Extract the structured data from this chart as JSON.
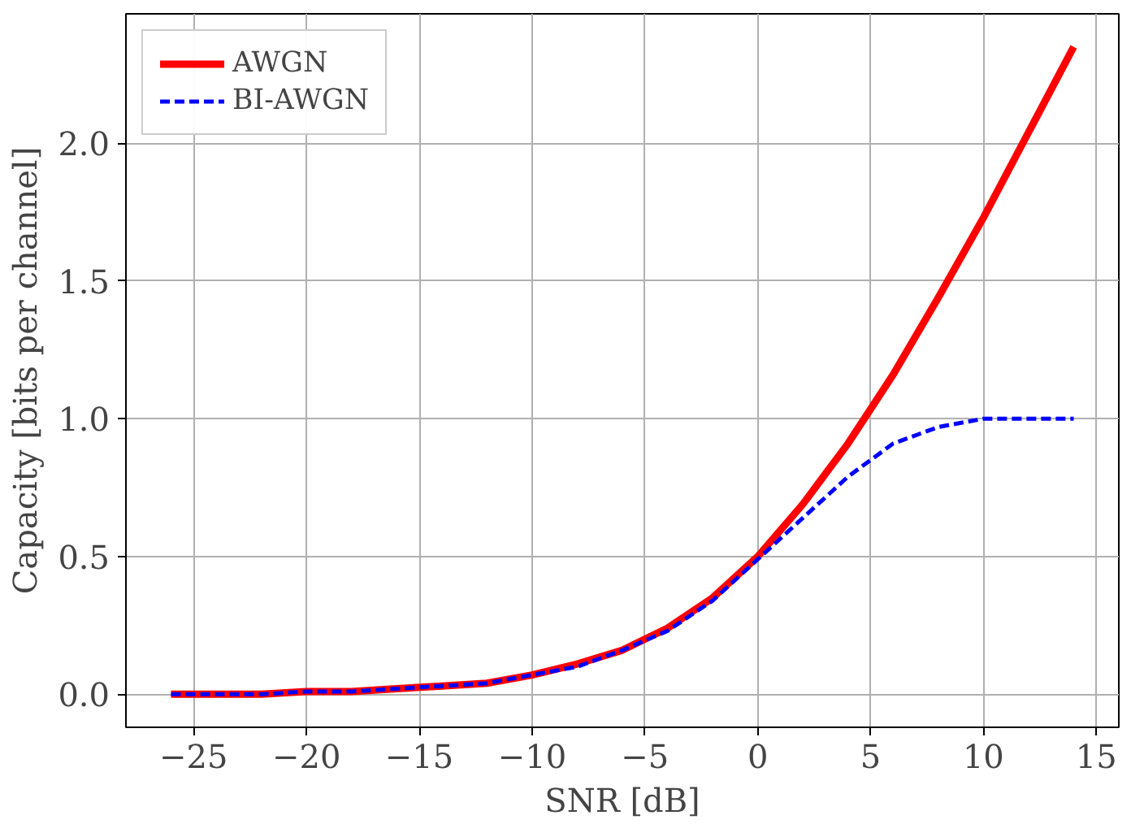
{
  "chart_data": {
    "type": "line",
    "xlabel": "SNR [dB]",
    "ylabel": "Capacity [bits per channel]",
    "x": [
      -26,
      -24,
      -22,
      -20,
      -18,
      -16,
      -14,
      -12,
      -10,
      -8,
      -6,
      -4,
      -2,
      0,
      2,
      4,
      6,
      8,
      10,
      12,
      14
    ],
    "series": [
      {
        "name": "AWGN",
        "color": "#ff0000",
        "line_style": "solid",
        "values": [
          0.0,
          0.0,
          0.0,
          0.01,
          0.01,
          0.02,
          0.03,
          0.04,
          0.07,
          0.11,
          0.16,
          0.24,
          0.35,
          0.5,
          0.69,
          0.91,
          1.16,
          1.44,
          1.73,
          2.04,
          2.35
        ]
      },
      {
        "name": "BI-AWGN",
        "color": "#0000ff",
        "line_style": "dashed",
        "values": [
          0.0,
          0.0,
          0.0,
          0.01,
          0.01,
          0.02,
          0.03,
          0.04,
          0.07,
          0.1,
          0.16,
          0.23,
          0.34,
          0.49,
          0.64,
          0.79,
          0.91,
          0.97,
          1.0,
          1.0,
          1.0
        ]
      }
    ],
    "xlim": [
      -28,
      16
    ],
    "ylim": [
      -0.12,
      2.47
    ],
    "xticks": [
      -25,
      -20,
      -15,
      -10,
      -5,
      0,
      5,
      10,
      15
    ],
    "yticks": [
      {
        "value": 0,
        "label": "0.0"
      },
      {
        "value": 0.5,
        "label": "0.5"
      },
      {
        "value": 1,
        "label": "1.0"
      },
      {
        "value": 1.5,
        "label": "1.5"
      },
      {
        "value": 2,
        "label": "2.0"
      }
    ],
    "grid": true,
    "legend": "top left"
  }
}
